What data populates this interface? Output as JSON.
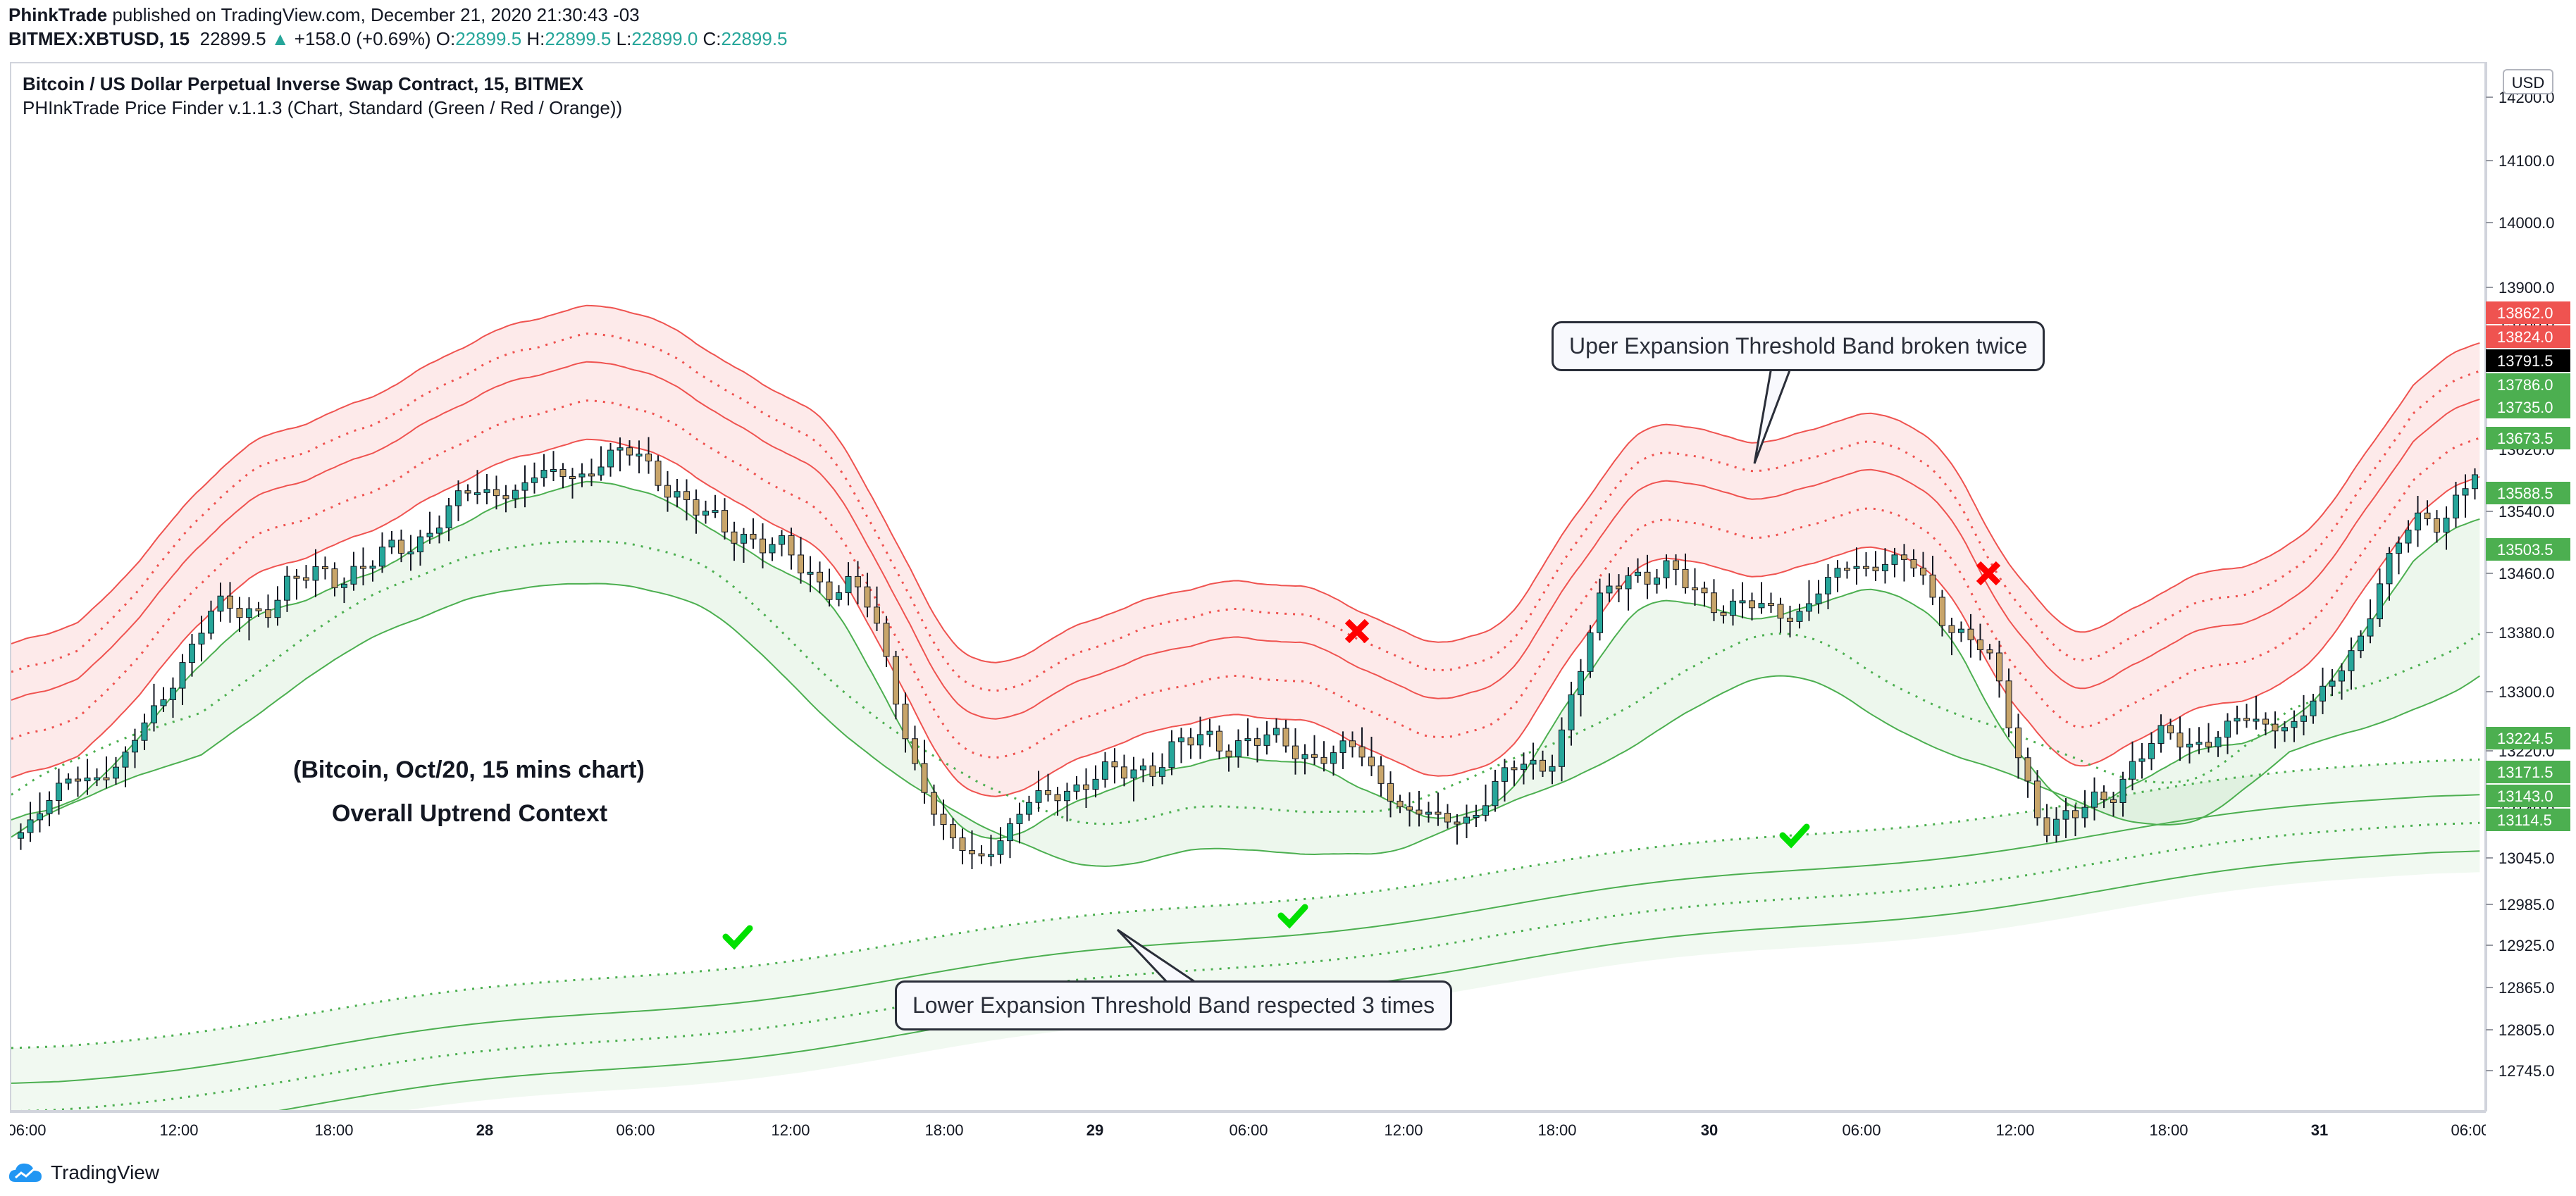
{
  "header": {
    "author": "PhinkTrade",
    "published": " published on TradingView.com, December 21, 2020 21:30:43 -03",
    "symbol": "BITMEX:XBTUSD, 15",
    "last": "22899.5",
    "change": "+158.0 (+0.69%)",
    "o_label": "O:",
    "o_value": "22899.5",
    "h_label": "H:",
    "h_value": "22899.5",
    "l_label": "L:",
    "l_value": "22899.0",
    "c_label": "C:",
    "c_value": "22899.5"
  },
  "chart": {
    "title": "Bitcoin / US Dollar Perpetual Inverse Swap Contract, 15, BITMEX",
    "indicator": "PHInkTrade Price Finder v.1.1.3 (Chart, Standard (Green / Red / Orange))",
    "currency": "USD",
    "note_line1": "(Bitcoin, Oct/20, 15 mins chart)",
    "note_line2": "Overall Uptrend Context",
    "callout_upper": "Uper Expansion Threshold Band broken twice",
    "callout_lower": "Lower Expansion Threshold Band respected 3 times"
  },
  "price_axis": {
    "ticks": [
      "14200.0",
      "14100.0",
      "14000.0",
      "13900.0",
      "13780.0",
      "13700.0",
      "13620.0",
      "13540.0",
      "13460.0",
      "13380.0",
      "13300.0",
      "13220.0",
      "13140.0",
      "13045.0",
      "12985.0",
      "12925.0",
      "12865.0",
      "12805.0",
      "12745.0"
    ],
    "tags": [
      {
        "text": "13862.0",
        "color": "#ef5350"
      },
      {
        "text": "13824.0",
        "color": "#ef5350"
      },
      {
        "text": "13791.5",
        "color": "#000000"
      },
      {
        "text": "13786.0",
        "color": "#4caf50"
      },
      {
        "text": "13735.0",
        "color": "#4caf50"
      },
      {
        "text": "13673.5",
        "color": "#4caf50"
      },
      {
        "text": "13588.5",
        "color": "#4caf50"
      },
      {
        "text": "13503.5",
        "color": "#4caf50"
      },
      {
        "text": "13224.5",
        "color": "#4caf50"
      },
      {
        "text": "13171.5",
        "color": "#4caf50"
      },
      {
        "text": "13143.0",
        "color": "#4caf50"
      },
      {
        "text": "13114.5",
        "color": "#4caf50"
      }
    ]
  },
  "time_axis": {
    "ticks": [
      "06:00",
      "12:00",
      "18:00",
      "28",
      "06:00",
      "12:00",
      "18:00",
      "29",
      "06:00",
      "12:00",
      "18:00",
      "30",
      "06:00",
      "12:00",
      "18:00",
      "31",
      "06:00"
    ]
  },
  "footer": {
    "brand": "TradingView"
  },
  "colors": {
    "up": "#26a69a",
    "red_band": "#ef5350",
    "green_band": "#4caf50"
  }
}
